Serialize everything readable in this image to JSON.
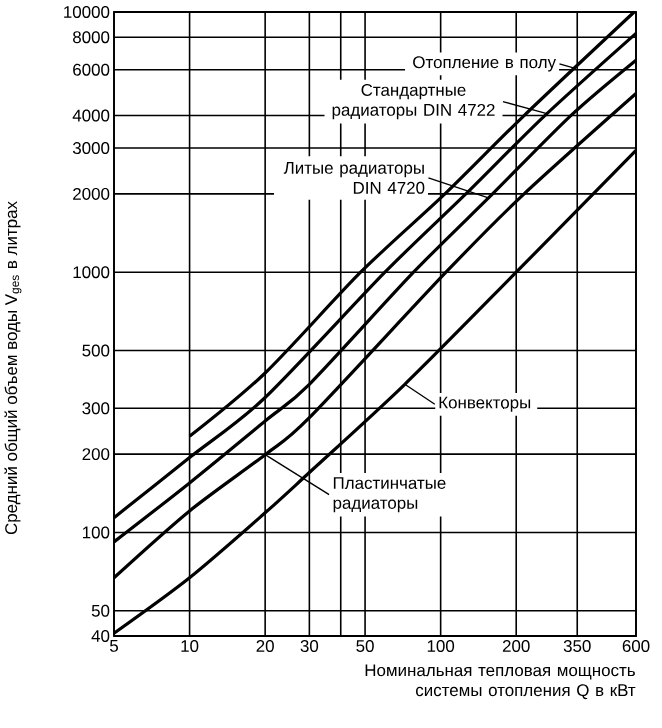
{
  "chart_data": {
    "type": "line",
    "xlabel": "Номинальная тепловая мощность системы отопления Q в кВт",
    "ylabel": "Средний общий объем воды V$_{ges}$ в литрах",
    "log": "xy",
    "grid": true,
    "marker": "none",
    "line_style": "solid",
    "xlim": [
      5,
      600
    ],
    "ylim": [
      40,
      10000
    ],
    "xticks": [
      5,
      10,
      20,
      30,
      {
        "value": 40,
        "label": null
      },
      50,
      100,
      200,
      350,
      600
    ],
    "yticks": [
      40,
      50,
      100,
      200,
      300,
      500,
      1000,
      2000,
      3000,
      4000,
      6000,
      8000,
      10000
    ],
    "series": [
      {
        "color": "#000000",
        "x": [
          10,
          20,
          48,
          104,
          215,
          590
        ],
        "values": [
          234,
          410,
          1000,
          2000,
          4000,
          10000
        ]
      },
      {
        "color": "#000000",
        "x": [
          5,
          10,
          20,
          60,
          126,
          260,
          600
        ],
        "values": [
          114,
          194,
          330,
          1000,
          2000,
          4000,
          8280
        ]
      },
      {
        "color": "#000000",
        "x": [
          5,
          10,
          20,
          30,
          78,
          161,
          330,
          600
        ],
        "values": [
          92,
          155,
          268,
          371,
          1000,
          2000,
          4000,
          6530
        ]
      },
      {
        "color": "#000000",
        "x": [
          5,
          10,
          20,
          30,
          105,
          215,
          600
        ],
        "values": [
          67,
          121,
          199,
          276,
          1000,
          2000,
          4860
        ]
      },
      {
        "color": "#000000",
        "x": [
          5,
          10,
          20,
          30,
          72,
          200,
          600
        ],
        "values": [
          41,
          67,
          119,
          170,
          371,
          1000,
          2940
        ]
      }
    ],
    "annotations": [
      {
        "text": "Отопление в полу",
        "x": 338,
        "y": 6100
      },
      {
        "text": "Стандартные радиаторы DIN 4722",
        "x": 265,
        "y": 4070
      },
      {
        "text": "Литые радиаторы DIN 4720",
        "x": 155,
        "y": 1930
      },
      {
        "text": "Конвекторы",
        "x": 72,
        "y": 371
      },
      {
        "text": "Пластинчатые радиаторы",
        "x": 20,
        "y": 199
      }
    ]
  }
}
